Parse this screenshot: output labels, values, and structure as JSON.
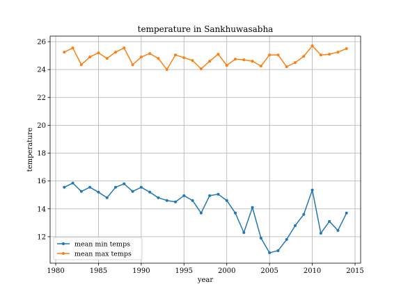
{
  "chart_data": {
    "type": "line",
    "title": "temperature in Sankhuwasabha",
    "xlabel": "year",
    "ylabel": "temperature",
    "xlim": [
      1979.35,
      2015.65
    ],
    "ylim": [
      10.1,
      26.4
    ],
    "xticks": [
      1980,
      1985,
      1990,
      1995,
      2000,
      2005,
      2010,
      2015
    ],
    "yticks": [
      12,
      14,
      16,
      18,
      20,
      22,
      24,
      26
    ],
    "grid": true,
    "legend_position": "lower-left",
    "x": [
      1981,
      1982,
      1983,
      1984,
      1985,
      1986,
      1987,
      1988,
      1989,
      1990,
      1991,
      1992,
      1993,
      1994,
      1995,
      1996,
      1997,
      1998,
      1999,
      2000,
      2001,
      2002,
      2003,
      2004,
      2005,
      2006,
      2007,
      2008,
      2009,
      2010,
      2011,
      2012,
      2013,
      2014
    ],
    "series": [
      {
        "name": "mean min temps",
        "color": "#1f77b4",
        "values": [
          15.55,
          15.85,
          15.25,
          15.55,
          15.2,
          14.8,
          15.55,
          15.8,
          15.25,
          15.55,
          15.2,
          14.8,
          14.6,
          14.5,
          14.95,
          14.6,
          13.7,
          14.95,
          15.05,
          14.6,
          13.7,
          12.3,
          14.1,
          11.9,
          10.85,
          11.0,
          11.8,
          12.8,
          13.6,
          15.35,
          12.25,
          13.1,
          12.45,
          13.7
        ]
      },
      {
        "name": "mean max temps",
        "color": "#ff7f0e",
        "values": [
          25.25,
          25.55,
          24.35,
          24.9,
          25.2,
          24.8,
          25.25,
          25.55,
          24.35,
          24.9,
          25.15,
          24.8,
          24.0,
          25.05,
          24.85,
          24.65,
          24.05,
          24.6,
          25.1,
          24.3,
          24.75,
          24.7,
          24.6,
          24.25,
          25.05,
          25.05,
          24.2,
          24.5,
          24.95,
          25.7,
          25.05,
          25.1,
          25.25,
          25.5
        ]
      }
    ]
  }
}
